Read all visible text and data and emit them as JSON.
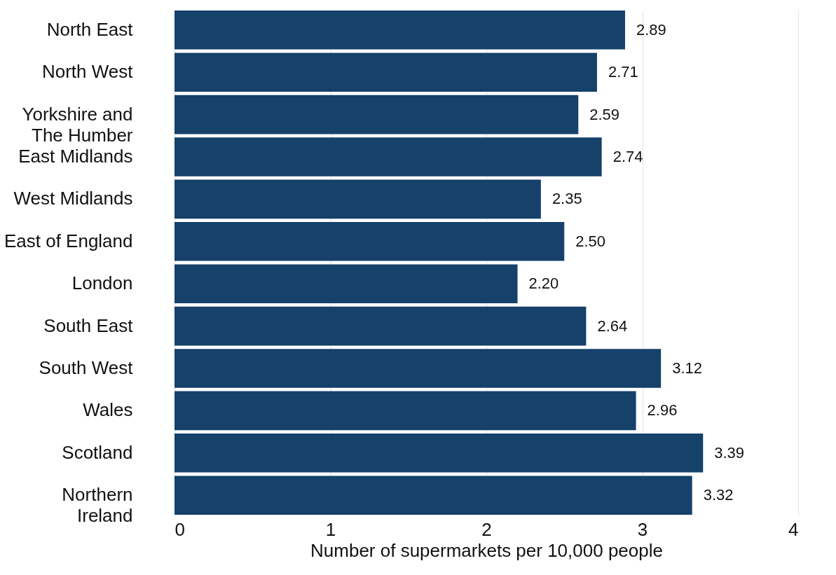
{
  "chart_data": {
    "type": "bar",
    "orientation": "horizontal",
    "xlabel": "Number of supermarkets per 10,000 people",
    "categories": [
      "North East",
      "North West",
      "Yorkshire and\nThe Humber",
      "East Midlands",
      "West Midlands",
      "East of England",
      "London",
      "South East",
      "South West",
      "Wales",
      "Scotland",
      "Northern\nIreland"
    ],
    "values": [
      2.89,
      2.71,
      2.59,
      2.74,
      2.35,
      2.5,
      2.2,
      2.64,
      3.12,
      2.96,
      3.39,
      3.32
    ],
    "value_labels": [
      "2.89",
      "2.71",
      "2.59",
      "2.74",
      "2.35",
      "2.50",
      "2.20",
      "2.64",
      "3.12",
      "2.96",
      "3.39",
      "3.32"
    ],
    "color": "#15416b",
    "xlim": [
      0,
      4
    ],
    "xticks": [
      0,
      1,
      2,
      3,
      4
    ],
    "grid": "x"
  }
}
